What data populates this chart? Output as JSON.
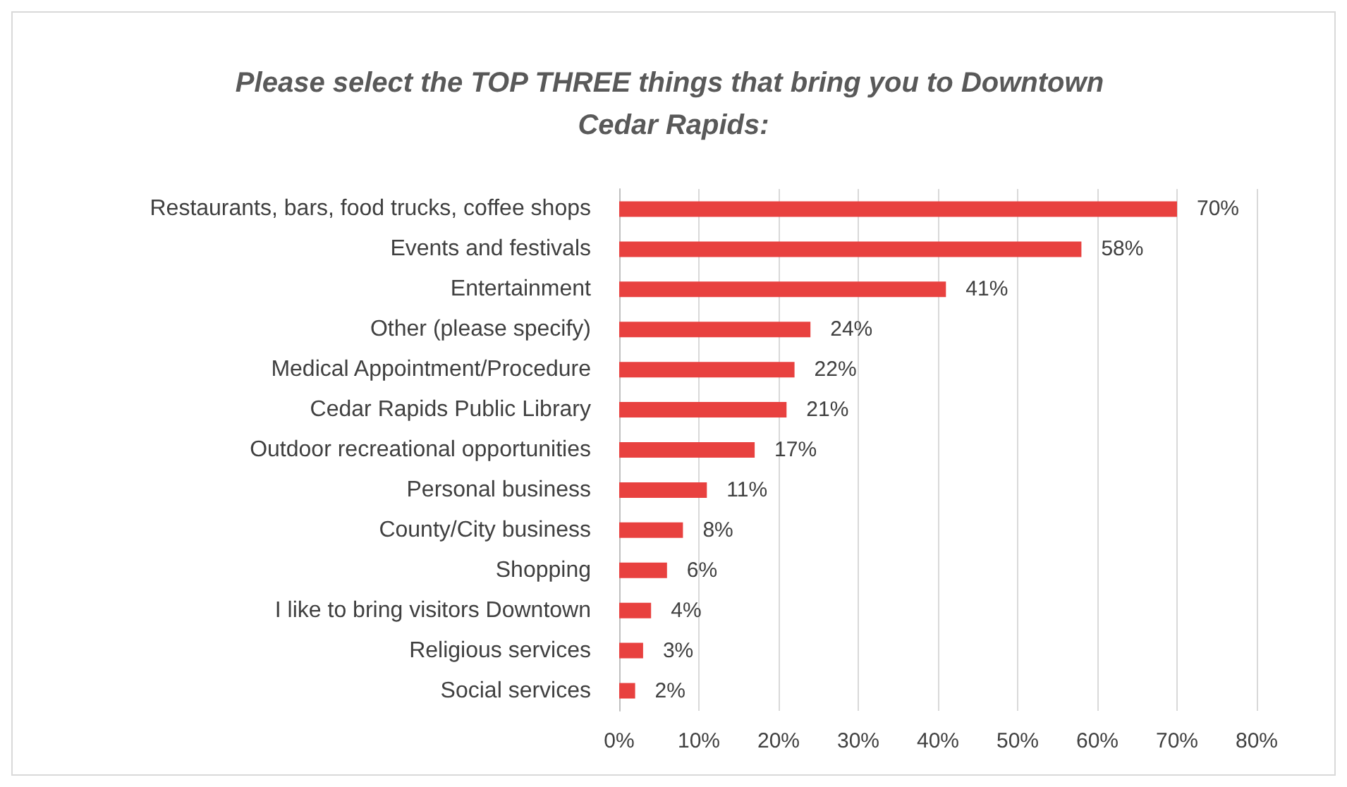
{
  "chart_data": {
    "type": "bar",
    "orientation": "horizontal",
    "title": "Please select the TOP THREE things that bring you to Downtown Cedar Rapids:",
    "categories": [
      "Restaurants, bars, food trucks, coffee shops",
      "Events and festivals",
      "Entertainment",
      "Other (please specify)",
      "Medical Appointment/Procedure",
      "Cedar Rapids Public Library",
      "Outdoor recreational opportunities",
      "Personal business",
      "County/City business",
      "Shopping",
      "I like to bring visitors Downtown",
      "Religious services",
      "Social services"
    ],
    "values": [
      70,
      58,
      41,
      24,
      22,
      21,
      17,
      11,
      8,
      6,
      4,
      3,
      2
    ],
    "value_labels": [
      "70%",
      "58%",
      "41%",
      "24%",
      "22%",
      "21%",
      "17%",
      "11%",
      "8%",
      "6%",
      "4%",
      "3%",
      "2%"
    ],
    "color": "#e8413f",
    "xlim": [
      0,
      80
    ],
    "xticks": [
      {
        "value": 0,
        "label": "0%"
      },
      {
        "value": 10,
        "label": "10%"
      },
      {
        "value": 20,
        "label": "20%"
      },
      {
        "value": 30,
        "label": "30%"
      },
      {
        "value": 40,
        "label": "40%"
      },
      {
        "value": 50,
        "label": "50%"
      },
      {
        "value": 60,
        "label": "60%"
      },
      {
        "value": 70,
        "label": "70%"
      },
      {
        "value": 80,
        "label": "80%"
      }
    ],
    "grid": "x"
  }
}
